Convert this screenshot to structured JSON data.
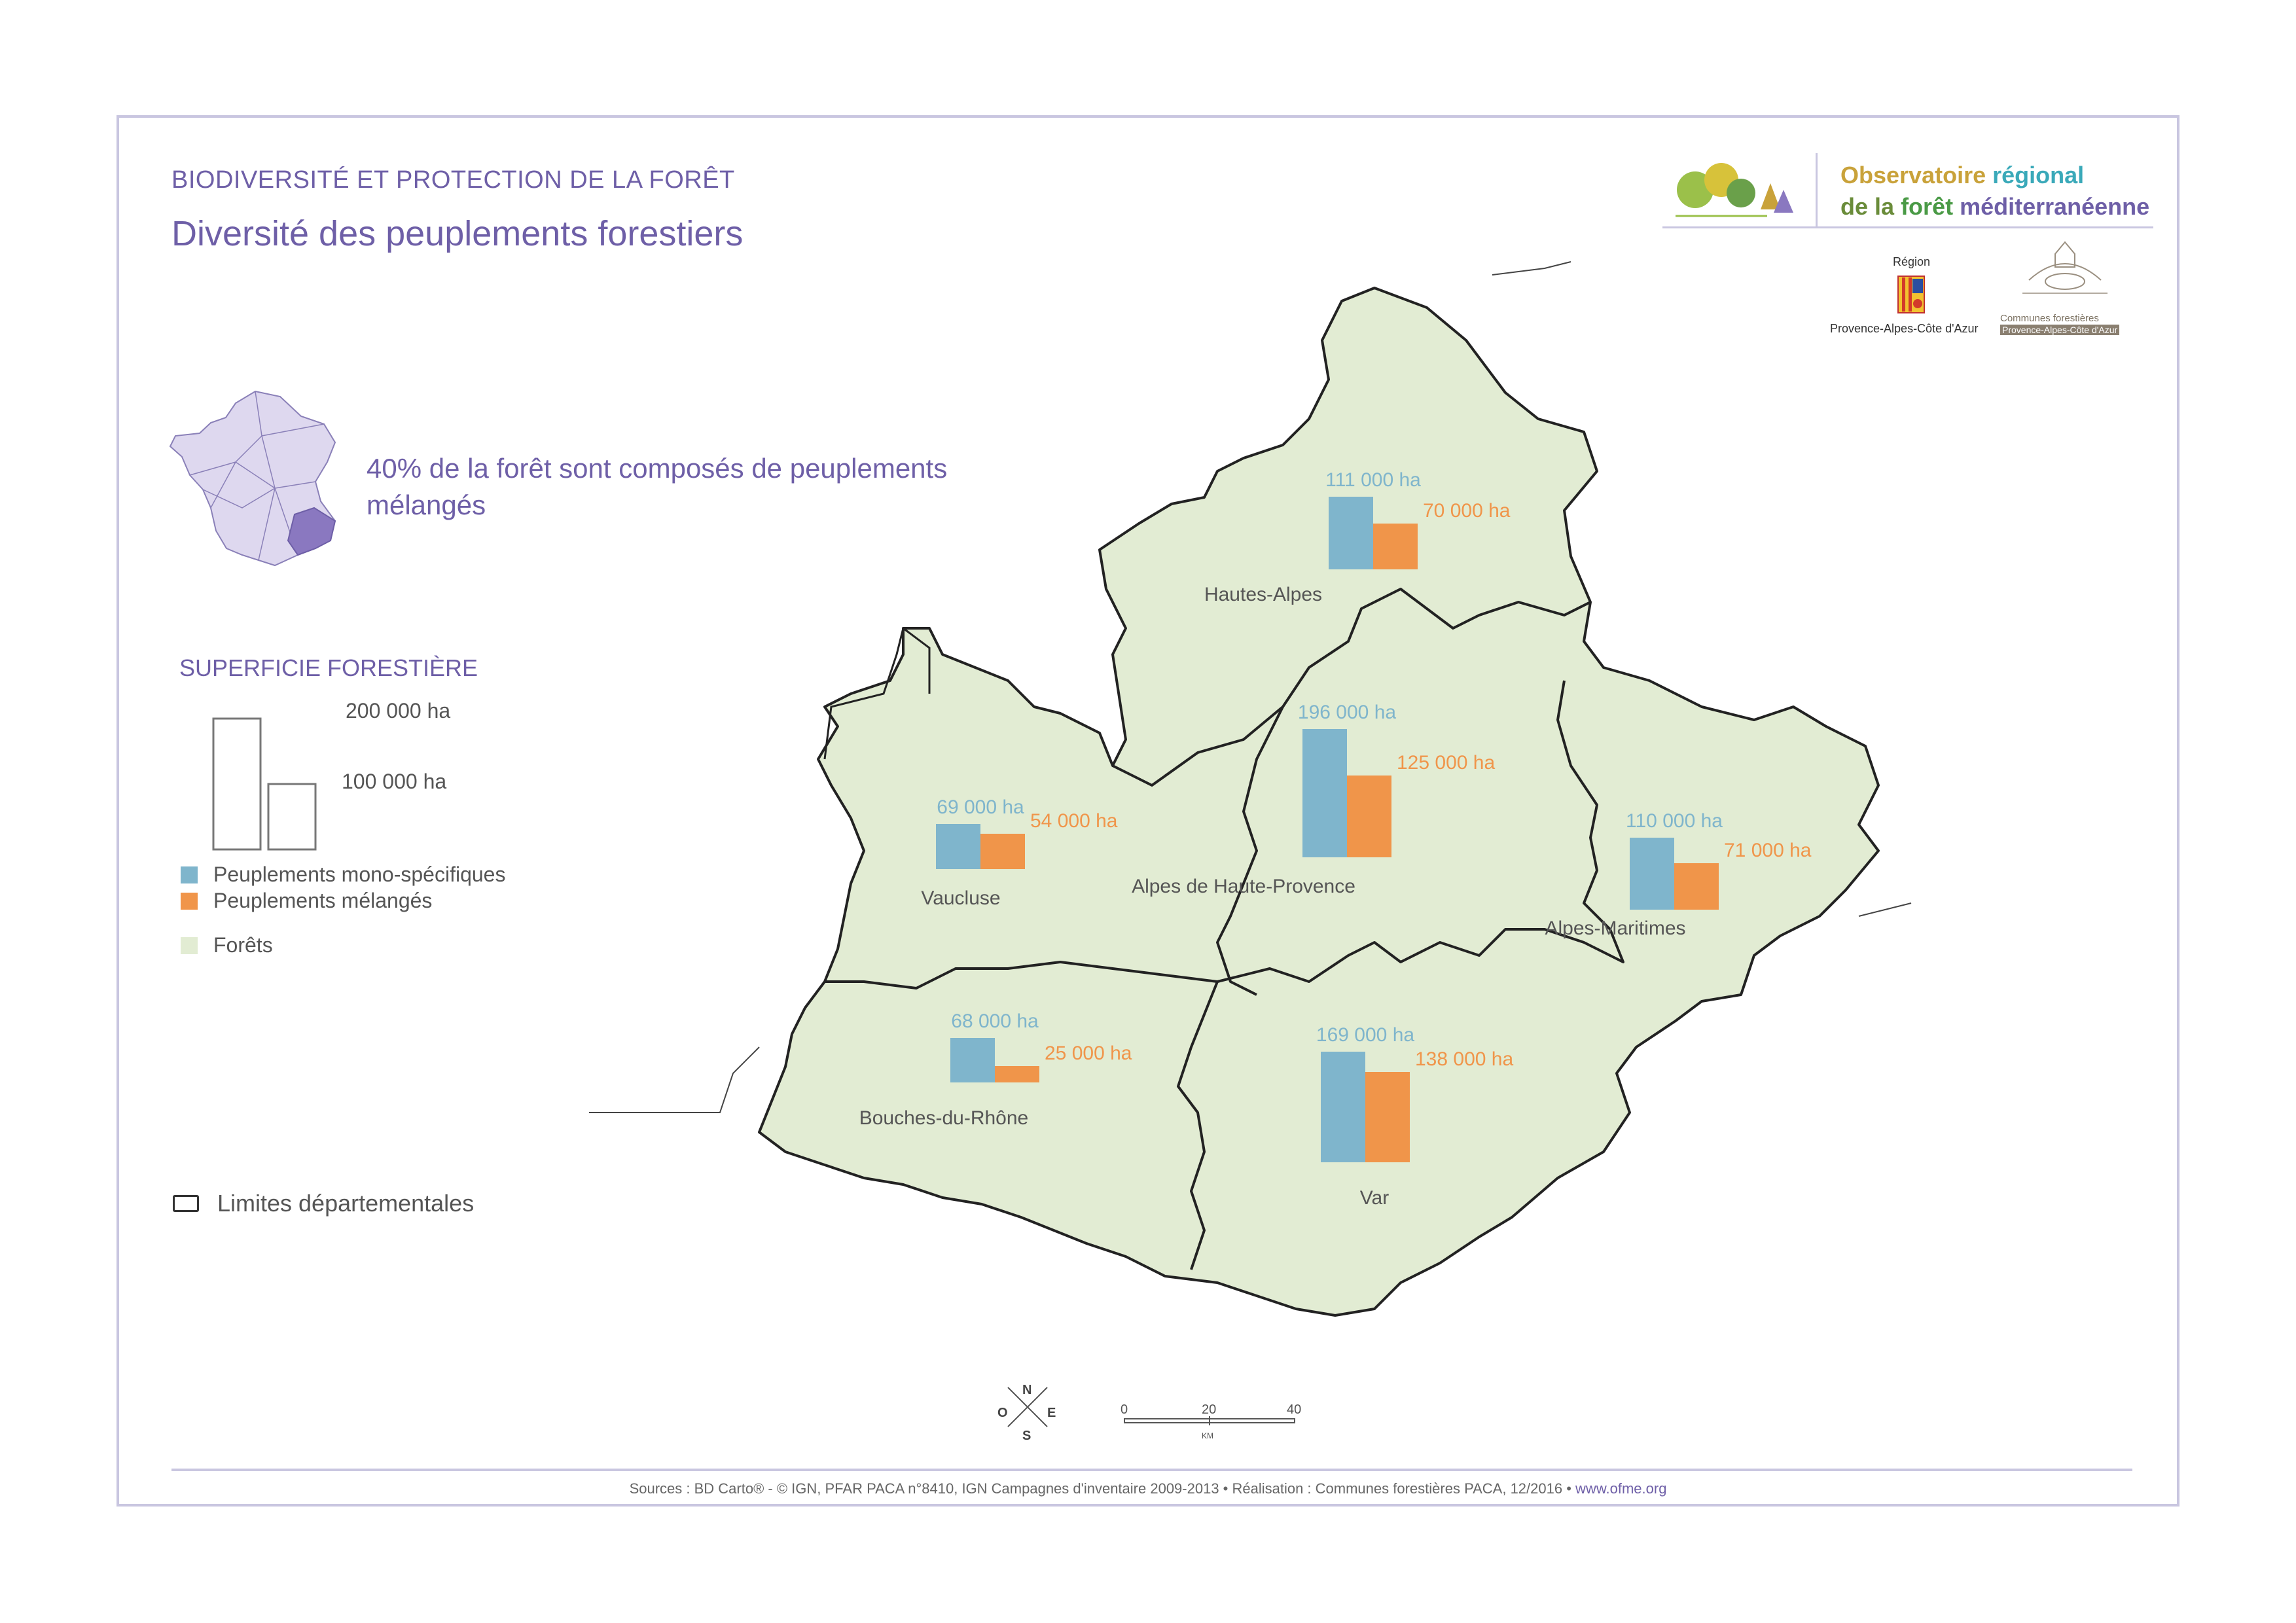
{
  "header": {
    "supertitle": "BIODIVERSITÉ ET PROTECTION DE LA FORÊT",
    "title": "Diversité des peuplements forestiers"
  },
  "logos": {
    "observatoire_line1_a": "Observatoire",
    "observatoire_line1_b": "régional",
    "observatoire_line2_a": "de la",
    "observatoire_line2_b": "forêt",
    "observatoire_line2_c": "méditerranéenne",
    "region_label": "Région",
    "region_name": "Provence-Alpes-Côte d'Azur",
    "communes_line1": "Communes forestières",
    "communes_line2": "Provence-Alpes-Côte d'Azur"
  },
  "stat_text": "40% de la forêt sont composés de peuplements mélangés",
  "legend": {
    "superficie_title": "SUPERFICIE FORESTIÈRE",
    "scale_200": "200 000 ha",
    "scale_100": "100 000 ha",
    "mono_label": "Peuplements mono-spécifiques",
    "melange_label": "Peuplements mélangés",
    "forets_label": "Forêts",
    "limites_label": "Limites départementales",
    "colors": {
      "mono": "#7fb5cc",
      "melange": "#f0954a",
      "foret": "#e2ecd3",
      "purple": "#6e5fa7"
    }
  },
  "map": {
    "departments": [
      {
        "name": "Hautes-Alpes",
        "mono_ha": 111000,
        "melange_ha": 70000,
        "mono_label": "111 000 ha",
        "melange_label": "70 000 ha"
      },
      {
        "name": "Alpes de Haute-Provence",
        "mono_ha": 196000,
        "melange_ha": 125000,
        "mono_label": "196 000 ha",
        "melange_label": "125 000 ha"
      },
      {
        "name": "Vaucluse",
        "mono_ha": 69000,
        "melange_ha": 54000,
        "mono_label": "69 000 ha",
        "melange_label": "54 000 ha"
      },
      {
        "name": "Alpes-Maritimes",
        "mono_ha": 110000,
        "melange_ha": 71000,
        "mono_label": "110 000 ha",
        "melange_label": "71 000 ha"
      },
      {
        "name": "Bouches-du-Rhône",
        "mono_ha": 68000,
        "melange_ha": 25000,
        "mono_label": "68 000 ha",
        "melange_label": "25 000 ha"
      },
      {
        "name": "Var",
        "mono_ha": 169000,
        "melange_ha": 138000,
        "mono_label": "169 000 ha",
        "melange_label": "138 000 ha"
      }
    ],
    "compass": {
      "n": "N",
      "s": "S",
      "e": "E",
      "o": "O"
    },
    "scalebar": {
      "t0": "0",
      "t20": "20",
      "t40": "40",
      "unit": "KM"
    }
  },
  "footer": {
    "sources": "Sources : BD Carto® - © IGN, PFAR PACA n°8410,  IGN Campagnes d'inventaire 2009-2013 • Réalisation : Communes forestières PACA, 12/2016 •",
    "website": "www.ofme.org"
  }
}
